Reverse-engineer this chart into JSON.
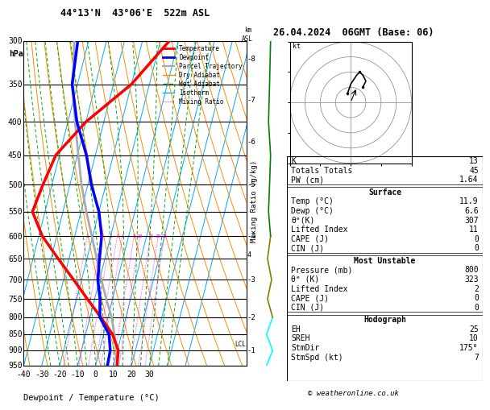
{
  "title_left": "44°13'N  43°06'E  522m ASL",
  "title_right": "26.04.2024  06GMT (Base: 06)",
  "ylabel_left": "hPa",
  "xlabel": "Dewpoint / Temperature (°C)",
  "mixing_ratio_ylabel": "Mixing Ratio (g/kg)",
  "pressure_levels": [
    300,
    350,
    400,
    450,
    500,
    550,
    600,
    650,
    700,
    750,
    800,
    850,
    900,
    950
  ],
  "temp_xlim": [
    -40,
    35
  ],
  "temp_xticks": [
    -40,
    -30,
    -20,
    -10,
    0,
    10,
    20,
    30
  ],
  "dry_adiabat_color": "#ff8c00",
  "wet_adiabat_color": "#00aa00",
  "isotherm_color": "#00aaff",
  "mixing_ratio_color": "#ff00ff",
  "mixing_ratio_values": [
    1,
    2,
    3,
    4,
    5,
    8,
    10,
    15,
    20,
    25
  ],
  "temperature_profile_T": [
    11.9,
    10.5,
    5.0,
    -4.0,
    -14.0,
    -24.5,
    -36.0,
    -48.0,
    -57.0,
    -55.0,
    -52.0,
    -40.0,
    -20.0,
    -5.0
  ],
  "temperature_profile_P": [
    950,
    900,
    850,
    800,
    750,
    700,
    650,
    600,
    550,
    500,
    450,
    400,
    350,
    300
  ],
  "dewpoint_profile_T": [
    6.6,
    6.0,
    3.0,
    -4.5,
    -7.0,
    -11.0,
    -13.0,
    -15.0,
    -20.0,
    -28.0,
    -35.0,
    -45.0,
    -53.0,
    -56.0
  ],
  "dewpoint_profile_P": [
    950,
    900,
    850,
    800,
    750,
    700,
    650,
    600,
    550,
    500,
    450,
    400,
    350,
    300
  ],
  "parcel_profile_T": [
    11.9,
    9.5,
    6.0,
    2.0,
    -3.5,
    -9.0,
    -14.5,
    -20.5,
    -27.0,
    -33.5,
    -39.5,
    -46.0,
    -52.5,
    -58.0
  ],
  "parcel_profile_P": [
    950,
    900,
    850,
    800,
    750,
    700,
    650,
    600,
    550,
    500,
    450,
    400,
    350,
    300
  ],
  "lcl_pressure": 880,
  "temperature_color": "#ff0000",
  "dewpoint_color": "#0000ff",
  "parcel_color": "#aaaaaa",
  "background_color": "#ffffff",
  "stats": {
    "K": 13,
    "Totals_Totals": 45,
    "PW_cm": 1.64,
    "Surface_Temp": 11.9,
    "Surface_Dewp": 6.6,
    "Surface_theta_e": 307,
    "Lifted_Index": 11,
    "CAPE": 0,
    "CIN": 0,
    "MU_Pressure": 800,
    "MU_theta_e": 323,
    "MU_Lifted_Index": 2,
    "MU_CAPE": 0,
    "MU_CIN": 0,
    "EH": 25,
    "SREH": 10,
    "StmDir": 175,
    "StmSpd": 7
  },
  "km_ticks": [
    1,
    2,
    3,
    4,
    5,
    6,
    7,
    8
  ],
  "km_pressures": [
    900,
    800,
    700,
    600,
    500,
    430,
    370,
    320
  ],
  "footer": "© weatheronline.co.uk",
  "wind_profile_colors_P": {
    "cyan": [
      950,
      900,
      850,
      800
    ],
    "olive": [
      800,
      750,
      700,
      650,
      600
    ],
    "green": [
      600,
      550,
      500,
      450,
      400,
      350,
      300
    ]
  }
}
